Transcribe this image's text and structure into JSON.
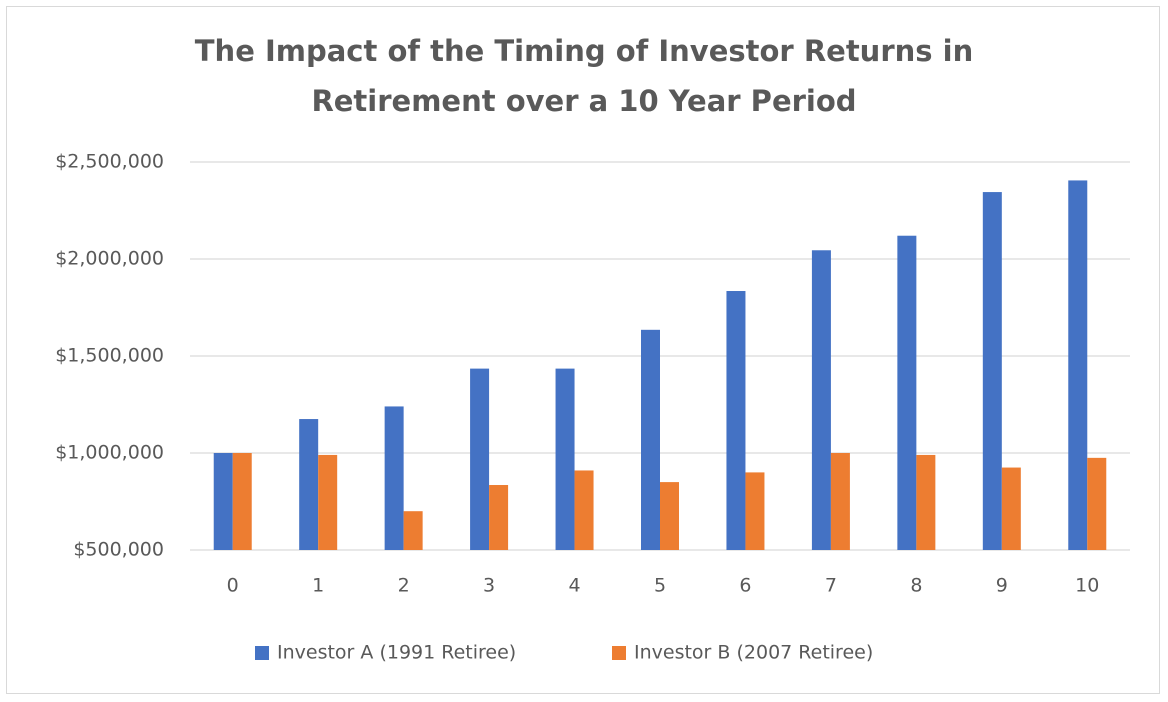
{
  "chart_data": {
    "type": "bar",
    "title": "The Impact of the Timing of Investor Returns in Retirement over a 10 Year Period",
    "categories": [
      "0",
      "1",
      "2",
      "3",
      "4",
      "5",
      "6",
      "7",
      "8",
      "9",
      "10"
    ],
    "series": [
      {
        "name": "Investor A (1991 Retiree)",
        "color": "#4472c4",
        "values": [
          1000000,
          1175000,
          1240000,
          1435000,
          1435000,
          1635000,
          1835000,
          2045000,
          2120000,
          2345000,
          2405000
        ]
      },
      {
        "name": "Investor B (2007 Retiree)",
        "color": "#ed7d31",
        "values": [
          1000000,
          990000,
          700000,
          835000,
          910000,
          850000,
          900000,
          1000000,
          990000,
          925000,
          975000
        ]
      }
    ],
    "ylim": [
      500000,
      2500000
    ],
    "yticks": [
      {
        "value": 500000,
        "label": "$500,000"
      },
      {
        "value": 1000000,
        "label": "$1,000,000"
      },
      {
        "value": 1500000,
        "label": "$1,500,000"
      },
      {
        "value": 2000000,
        "label": "$2,000,000"
      },
      {
        "value": 2500000,
        "label": "$2,500,000"
      }
    ],
    "grid": true,
    "legend": "bottom"
  }
}
